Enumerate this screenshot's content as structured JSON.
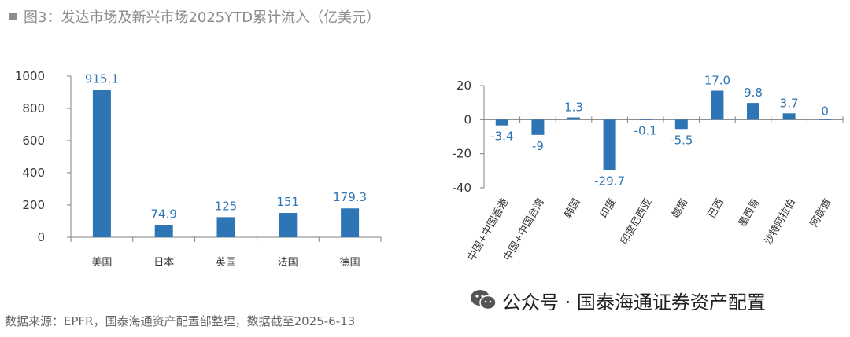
{
  "header": {
    "title": "图3：发达市场及新兴市场2025YTD累计流入（亿美元）"
  },
  "footer": {
    "source": "数据来源：EPFR，国泰海通资产配置部整理，数据截至2025-6-13"
  },
  "watermark": {
    "text": "公众号 · 国泰海通证券资产配置",
    "icon": "wechat-icon"
  },
  "colors": {
    "bar": "#2e75b6",
    "label": "#2e75b6",
    "axis": "#808080",
    "text": "#333333"
  },
  "chart_data": [
    {
      "type": "bar",
      "title": "",
      "categories": [
        "美国",
        "日本",
        "英国",
        "法国",
        "德国"
      ],
      "values": [
        915.1,
        74.9,
        125,
        151,
        179.3
      ],
      "value_labels": [
        "915.1",
        "74.9",
        "125",
        "151",
        "179.3"
      ],
      "yticks": [
        "0",
        "200",
        "400",
        "600",
        "800",
        "1000"
      ],
      "ylim": [
        0,
        1000
      ],
      "xlabel": "",
      "ylabel": "",
      "grid": false,
      "legend": "none"
    },
    {
      "type": "bar",
      "title": "",
      "categories": [
        "中国+中国香港",
        "中国+中国台湾",
        "韩国",
        "印度",
        "印度尼西亚",
        "越南",
        "巴西",
        "墨西哥",
        "沙特阿拉伯",
        "阿联酋"
      ],
      "values": [
        -3.4,
        -9,
        1.3,
        -29.7,
        -0.1,
        -5.5,
        17.0,
        9.8,
        3.7,
        0
      ],
      "value_labels": [
        "-3.4",
        "-9",
        "1.3",
        "-29.7",
        "-0.1",
        "-5.5",
        "17.0",
        "9.8",
        "3.7",
        "0"
      ],
      "yticks": [
        "-40",
        "-20",
        "0",
        "20"
      ],
      "ylim": [
        -40,
        20
      ],
      "xlabel": "",
      "ylabel": "",
      "grid": false,
      "legend": "none"
    }
  ]
}
